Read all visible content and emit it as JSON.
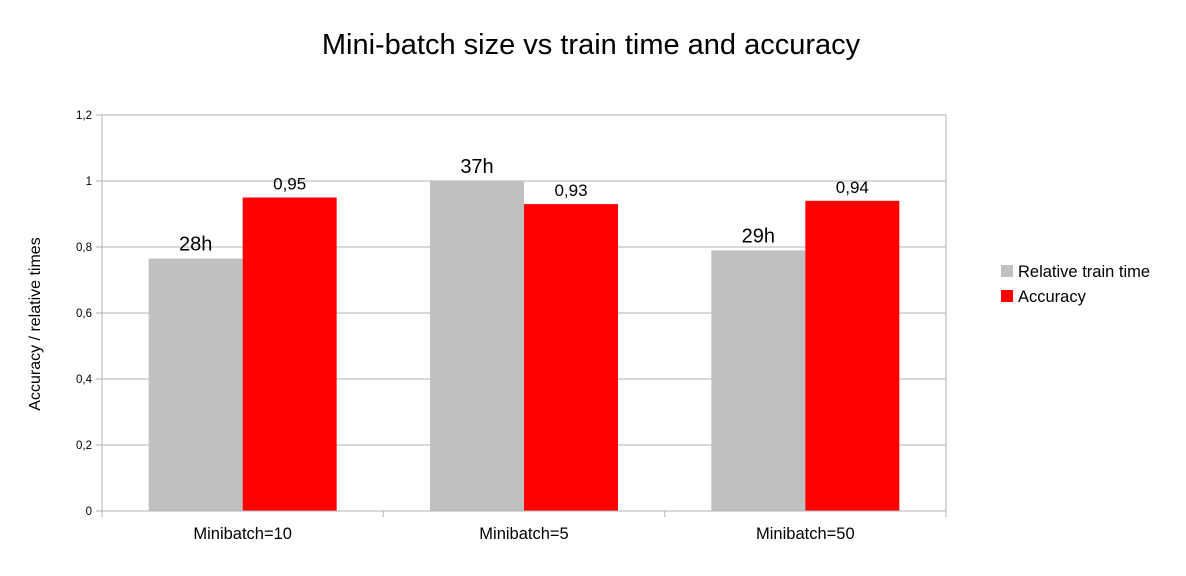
{
  "chart_data": {
    "type": "bar",
    "title": "Mini-batch size vs train time and accuracy",
    "xlabel": "",
    "ylabel": "Accuracy / relative times",
    "categories": [
      "Minibatch=10",
      "Minibatch=5",
      "Minibatch=50"
    ],
    "series": [
      {
        "name": "Relative train time",
        "color": "#c0c0c0",
        "values": [
          0.765,
          1.0,
          0.79
        ],
        "data_labels": [
          "28h",
          "37h",
          "29h"
        ]
      },
      {
        "name": "Accuracy",
        "color": "#ff0000",
        "values": [
          0.95,
          0.93,
          0.94
        ],
        "data_labels": [
          "0,95",
          "0,93",
          "0,94"
        ]
      }
    ],
    "ylim": [
      0,
      1.2
    ],
    "yticks": [
      "0",
      "0,2",
      "0,4",
      "0,6",
      "0,8",
      "1",
      "1,2"
    ],
    "grid": true,
    "legend_position": "right"
  }
}
